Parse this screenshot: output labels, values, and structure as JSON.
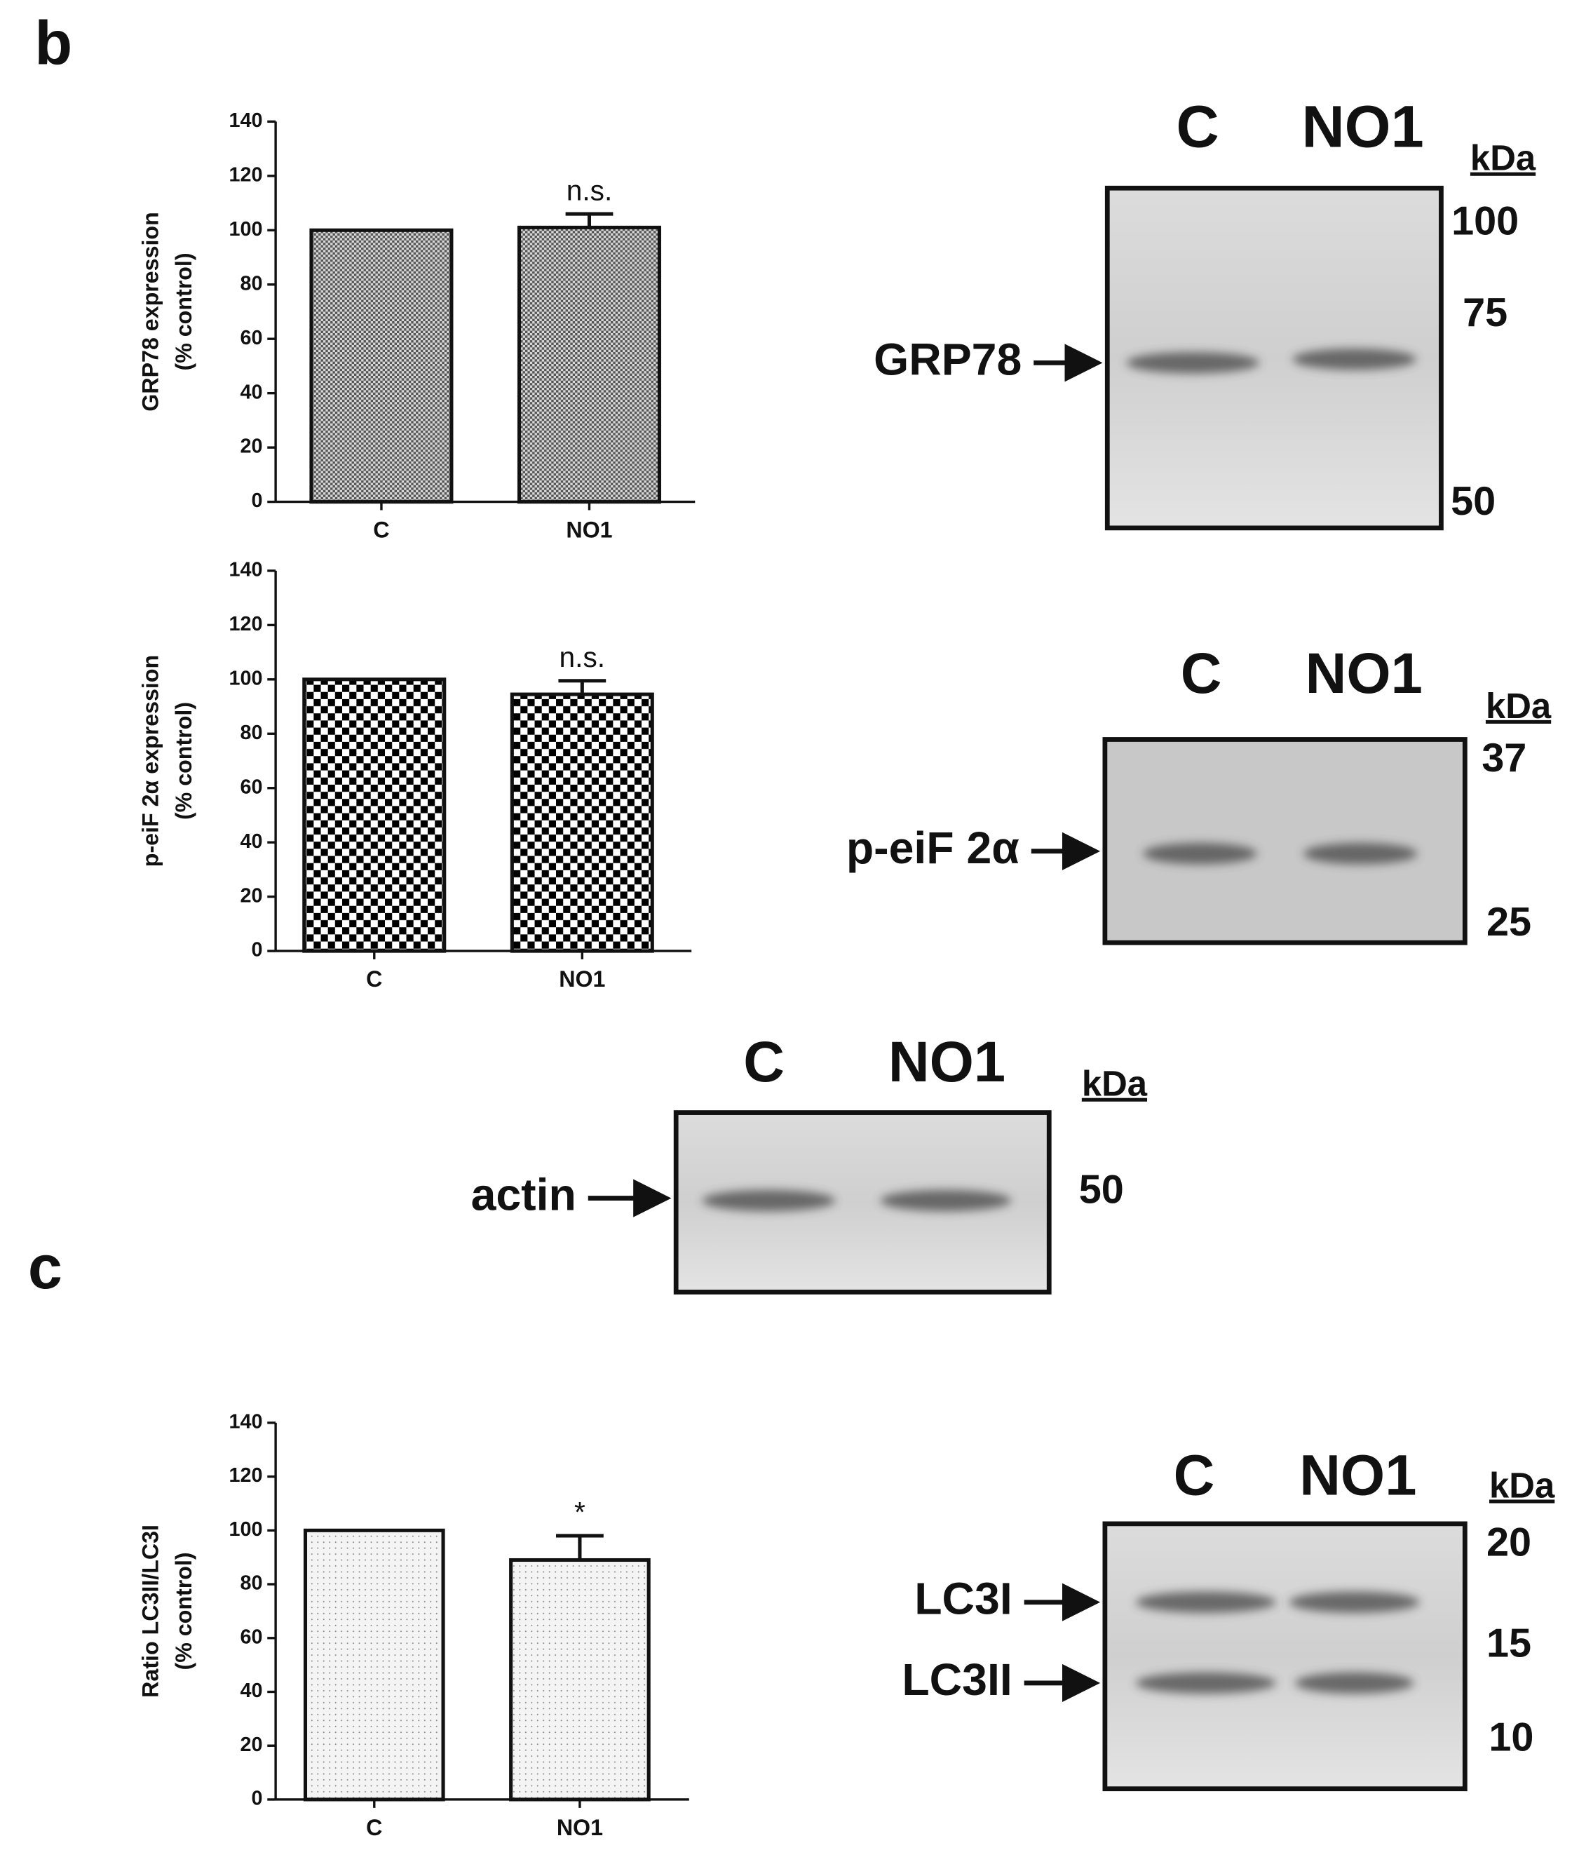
{
  "chart_data": [
    {
      "type": "bar",
      "ylabel": [
        "GRP78 expression",
        "(% control)"
      ],
      "categories": [
        "C",
        "NO1"
      ],
      "values": [
        100,
        101
      ],
      "errors": [
        null,
        5
      ],
      "value_annotations": [
        null,
        "n.s."
      ],
      "ylim": [
        0,
        140
      ],
      "yticks": [
        0,
        20,
        40,
        60,
        80,
        100,
        120,
        140
      ]
    },
    {
      "type": "bar",
      "ylabel": [
        "p-eiF 2α expression",
        "(% control)"
      ],
      "categories": [
        "C",
        "NO1"
      ],
      "values": [
        100,
        94.5
      ],
      "errors": [
        null,
        5
      ],
      "value_annotations": [
        null,
        "n.s."
      ],
      "ylim": [
        0,
        140
      ],
      "yticks": [
        0,
        20,
        40,
        60,
        80,
        100,
        120,
        140
      ]
    },
    {
      "type": "bar",
      "ylabel": [
        "Ratio LC3II/LC3I",
        "(% control)"
      ],
      "categories": [
        "C",
        "NO1"
      ],
      "values": [
        100,
        89
      ],
      "errors": [
        null,
        9
      ],
      "value_annotations": [
        null,
        "*"
      ],
      "ylim": [
        0,
        140
      ],
      "yticks": [
        0,
        20,
        40,
        60,
        80,
        100,
        120,
        140
      ]
    }
  ],
  "panel_labels": [
    "b",
    "c"
  ],
  "blots": [
    {
      "lanes": [
        "C",
        "NO1"
      ],
      "unit": "kDa",
      "targets": [
        "GRP78"
      ],
      "markers": [
        100,
        75,
        50
      ]
    },
    {
      "lanes": [
        "C",
        "NO1"
      ],
      "unit": "kDa",
      "targets": [
        "p-eiF 2α"
      ],
      "markers": [
        37,
        25
      ]
    },
    {
      "lanes": [
        "C",
        "NO1"
      ],
      "unit": "kDa",
      "targets": [
        "actin"
      ],
      "markers": [
        50
      ]
    },
    {
      "lanes": [
        "C",
        "NO1"
      ],
      "unit": "kDa",
      "targets": [
        "LC3I",
        "LC3II"
      ],
      "markers": [
        20,
        15,
        10
      ]
    }
  ]
}
